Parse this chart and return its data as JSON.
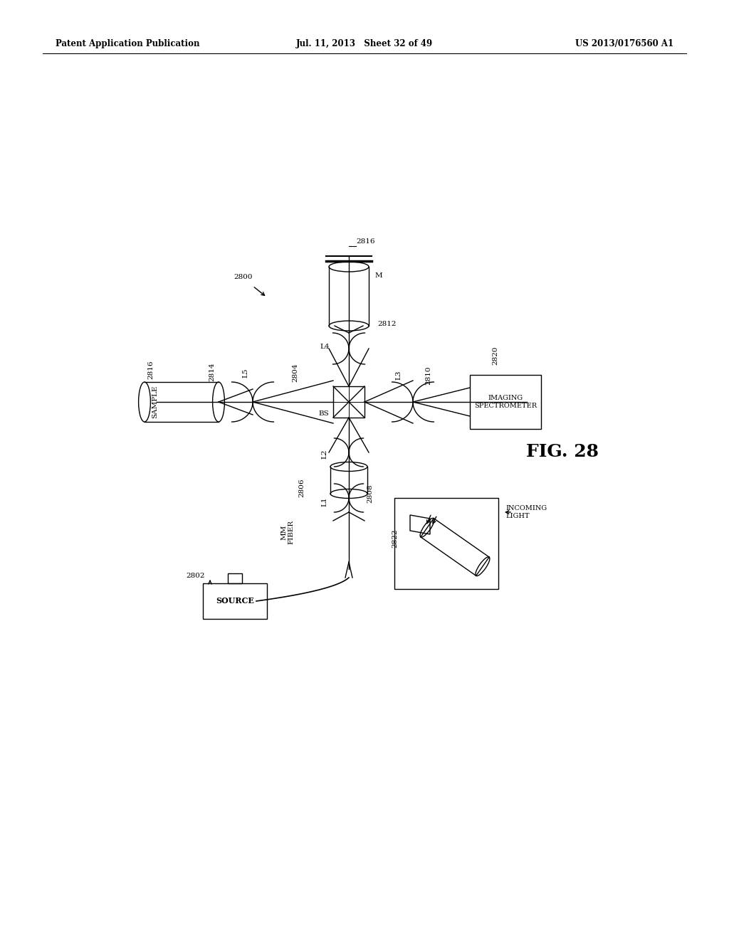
{
  "header_left": "Patent Application Publication",
  "header_center": "Jul. 11, 2013   Sheet 32 of 49",
  "header_right": "US 2013/0176560 A1",
  "bg_color": "#ffffff",
  "line_color": "#000000",
  "fig_label": "FIG. 28"
}
